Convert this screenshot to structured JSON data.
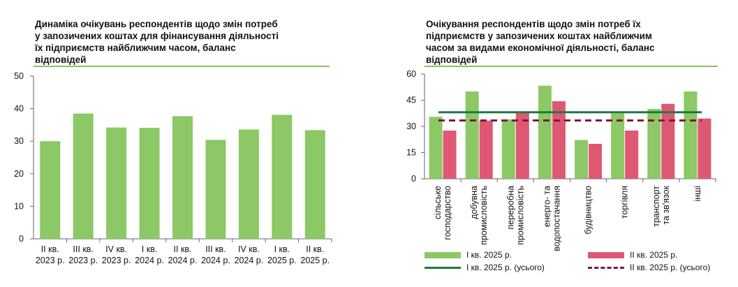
{
  "colors": {
    "green": "#8cc865",
    "red": "#de5874",
    "dark_green": "#1c7a42",
    "dark_red": "#7a1b3a",
    "title_rule": "#8cc063"
  },
  "left": {
    "title": "Динаміка очікувань респондентів щодо змін потреб\nу запозичених коштах для фінансування діяльності\nїх підприємств найближчим часом, баланс\nвідповідей"
  },
  "right": {
    "title": "Очікування респондентів щодо змін потреб їх\nпідприємств у запозичених коштах найближчим\nчасом за видами економічної діяльності, баланс\nвідповідей",
    "legend": {
      "q1": "І кв. 2025 р.",
      "q2": "ІІ кв. 2025 р.",
      "q1_total": "І кв. 2025 р. (усього)",
      "q2_total": "ІІ кв. 2025 р. (усього)"
    }
  },
  "chart_data": [
    {
      "type": "bar",
      "title": "Динаміка очікувань респондентів щодо змін потреб у запозичених коштах для фінансування діяльності їх підприємств найближчим часом, баланс відповідей",
      "categories": [
        [
          "ІІ кв.",
          "2023 р."
        ],
        [
          "ІІІ кв.",
          "2023 р."
        ],
        [
          "IV кв.",
          "2023 р."
        ],
        [
          "І кв.",
          "2024 р."
        ],
        [
          "ІІ кв.",
          "2024 р."
        ],
        [
          "ІІІ кв.",
          "2024 р."
        ],
        [
          "IV кв.",
          "2024 р."
        ],
        [
          "І кв.",
          "2025 р."
        ],
        [
          "ІІ кв.",
          "2025 р."
        ]
      ],
      "values": [
        30.0,
        38.5,
        34.2,
        34.1,
        37.7,
        30.4,
        33.6,
        38.1,
        33.4
      ],
      "ylim": [
        0,
        50
      ],
      "yticks": [
        0,
        10,
        20,
        30,
        40,
        50
      ],
      "grid": false
    },
    {
      "type": "bar",
      "title": "Очікування респондентів щодо змін потреб їх підприємств у запозичених коштах найближчим часом за видами економічної діяльності, баланс відповідей",
      "categories": [
        [
          "сільське",
          "господарство"
        ],
        [
          "добувна",
          "промисловість"
        ],
        [
          "переробна",
          "промисловість"
        ],
        [
          "енерго- та",
          "водопостачання"
        ],
        [
          "будівництво"
        ],
        [
          "торгівля"
        ],
        [
          "транспорт",
          "та зв'язок"
        ],
        [
          "інші"
        ]
      ],
      "series": [
        {
          "name": "І кв. 2025 р.",
          "values": [
            35.5,
            50.0,
            34.0,
            53.3,
            22.2,
            37.5,
            40.0,
            50.0
          ]
        },
        {
          "name": "ІІ кв. 2025 р.",
          "values": [
            27.6,
            33.3,
            37.8,
            44.4,
            20.0,
            27.6,
            42.9,
            34.5
          ]
        }
      ],
      "reference_lines": [
        {
          "name": "І кв. 2025 р. (усього)",
          "value": 38.1,
          "style": "solid"
        },
        {
          "name": "ІІ кв. 2025 р. (усього)",
          "value": 33.4,
          "style": "dashed"
        }
      ],
      "ylim": [
        0,
        60
      ],
      "yticks": [
        0,
        15,
        30,
        45,
        60
      ],
      "grid": false,
      "legend_position": "bottom"
    }
  ]
}
